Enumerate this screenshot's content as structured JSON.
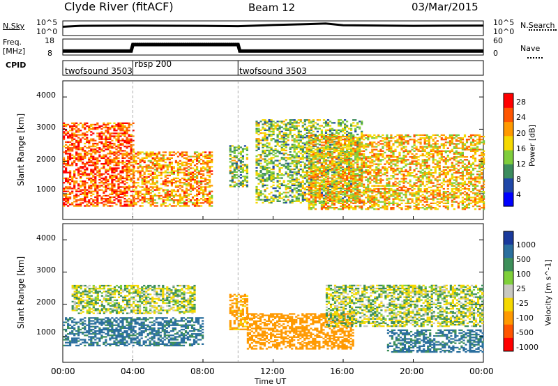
{
  "header": {
    "station": "Clyde River (fitACF)",
    "beam": "Beam 12",
    "date": "03/Mar/2015"
  },
  "colors": {
    "power_scale": [
      "#0000ff",
      "#1f47a8",
      "#3c8c5e",
      "#7fcd3c",
      "#f5d800",
      "#ff9900",
      "#ff5500",
      "#ff0000"
    ],
    "velocity_scale": [
      "#1a3a9c",
      "#2b6f9e",
      "#3d8f5a",
      "#7fd03a",
      "#c8c8c0",
      "#f5d800",
      "#ff9900",
      "#ff5500",
      "#ff0000"
    ],
    "ground_scatter": "#b8b8b8"
  },
  "chart_data": [
    {
      "type": "line",
      "panel": "N.Sky / N.Search",
      "left_axis_label": "N.Sky",
      "left_ticks": [
        "10^5",
        "10^0"
      ],
      "right_axis_label": "N.Search",
      "right_ticks": [
        "10^5",
        "10^0"
      ],
      "series": [
        {
          "name": "N.Sky",
          "x": [
            0,
            1,
            4,
            8,
            10,
            12,
            14,
            15,
            16,
            20,
            24
          ],
          "y": [
            3.0,
            3.3,
            3.4,
            3.3,
            3.2,
            3.6,
            3.9,
            4.1,
            3.5,
            3.3,
            3.4
          ]
        }
      ]
    },
    {
      "type": "line",
      "panel": "Freq. / Nave",
      "left_axis_label": "Freq.\n[MHz]",
      "left_ticks": [
        "18",
        "8"
      ],
      "right_axis_label": "Nave",
      "right_ticks": [
        "60",
        "0"
      ],
      "series": [
        {
          "name": "Freq.",
          "x": [
            0,
            3.9,
            4.0,
            10.0,
            10.1,
            24
          ],
          "y": [
            10.5,
            10.5,
            14.5,
            14.5,
            10.5,
            10.5
          ]
        }
      ]
    },
    {
      "type": "table",
      "panel": "CPID",
      "label": "CPID",
      "segments": [
        {
          "name": "twofsound 3503",
          "start": 0,
          "end": 4.0
        },
        {
          "name": "rbsp 200",
          "start": 4.0,
          "end": 10.0
        },
        {
          "name": "twofsound 3503",
          "start": 10.0,
          "end": 24
        }
      ]
    },
    {
      "type": "heatmap",
      "panel": "Power",
      "ylabel": "Slant Range [km]",
      "yticks": [
        1000,
        2000,
        3000,
        4000
      ],
      "ylim": [
        200,
        4500
      ],
      "xlim": [
        0,
        24
      ],
      "colorbar_label": "Power [dB]",
      "colorbar_ticks": [
        4,
        8,
        12,
        16,
        20,
        24,
        28
      ],
      "regions": [
        {
          "t0": 0.0,
          "t1": 4.0,
          "r0": 600,
          "r1": 3200,
          "level": 26
        },
        {
          "t0": 4.0,
          "t1": 8.5,
          "r0": 600,
          "r1": 2300,
          "level": 22
        },
        {
          "t0": 9.5,
          "t1": 10.5,
          "r0": 1200,
          "r1": 2500,
          "level": 14
        },
        {
          "t0": 11.0,
          "t1": 17.0,
          "r0": 700,
          "r1": 3300,
          "level": 14
        },
        {
          "t0": 14.0,
          "t1": 24.0,
          "r0": 500,
          "r1": 2800,
          "level": 20
        }
      ]
    },
    {
      "type": "heatmap",
      "panel": "Velocity",
      "ylabel": "Slant Range [km]",
      "yticks": [
        1000,
        2000,
        3000,
        4000
      ],
      "ylim": [
        200,
        4500
      ],
      "xlim": [
        0,
        24
      ],
      "xlabel": "Time UT",
      "xticks": [
        "00:00",
        "04:00",
        "08:00",
        "12:00",
        "16:00",
        "20:00",
        "00:00"
      ],
      "colorbar_label": "Velocity [m s^-1]",
      "colorbar_ticks": [
        1000,
        500,
        100,
        25,
        -25,
        -100,
        -500,
        -1000
      ],
      "regions": [
        {
          "t0": 0.0,
          "t1": 8.0,
          "r0": 700,
          "r1": 1600,
          "velocity": 150
        },
        {
          "t0": 0.5,
          "t1": 7.5,
          "r0": 1700,
          "r1": 2600,
          "velocity": 0
        },
        {
          "t0": 9.5,
          "t1": 10.5,
          "r0": 1200,
          "r1": 2300,
          "velocity": -150
        },
        {
          "t0": 10.5,
          "t1": 16.5,
          "r0": 600,
          "r1": 1700,
          "velocity": -200
        },
        {
          "t0": 15.0,
          "t1": 24.0,
          "r0": 1300,
          "r1": 2600,
          "velocity": 0
        },
        {
          "t0": 18.5,
          "t1": 24.0,
          "r0": 500,
          "r1": 1200,
          "velocity": 150
        }
      ]
    }
  ]
}
